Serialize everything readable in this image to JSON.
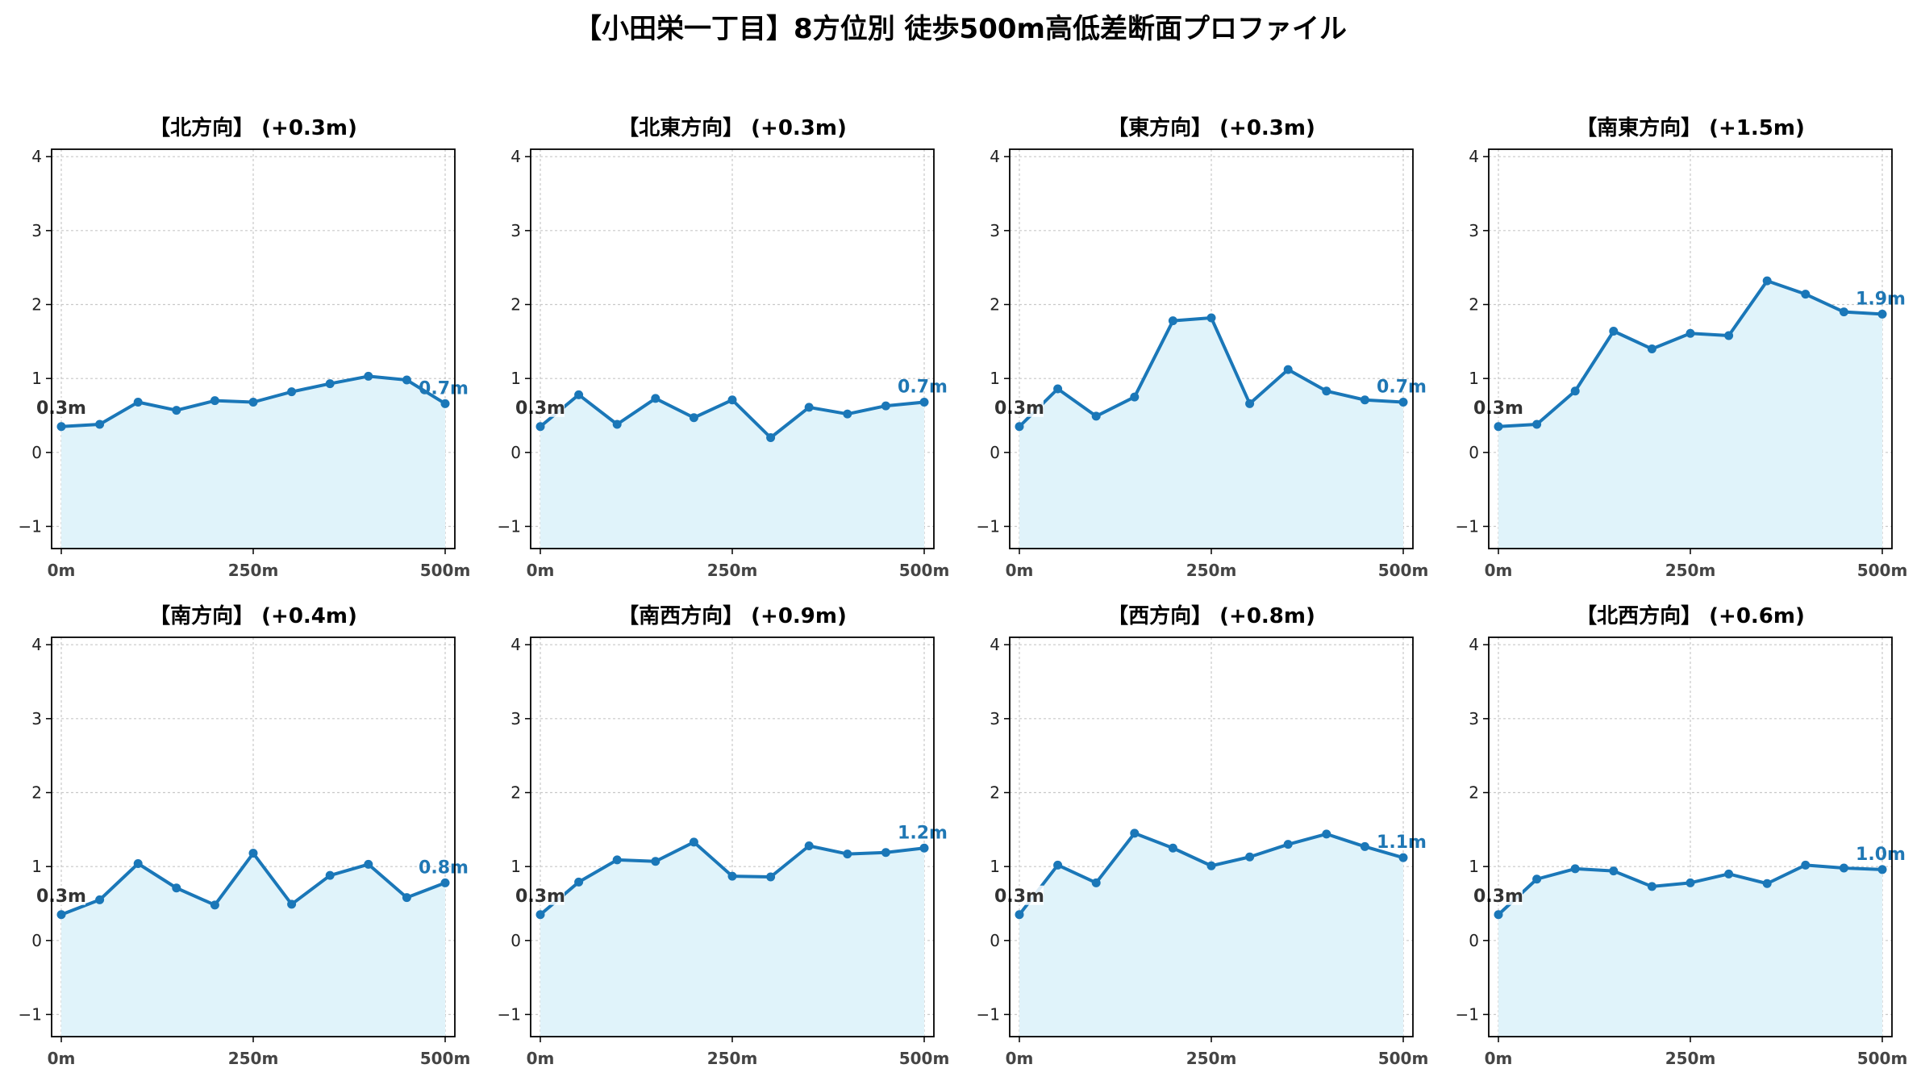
{
  "title": "【小田栄一丁目】8方位別 徒歩500m高低差断面プロファイル",
  "colors": {
    "line": "#1a77b8",
    "fill": "#e0f3fa",
    "grid": "#c8c8c8",
    "end_label": "#1f77b4",
    "start_label": "#333333"
  },
  "chart_data": [
    {
      "type": "area",
      "title": "【北方向】 (+0.3m)",
      "x": [
        0,
        50,
        100,
        150,
        200,
        250,
        300,
        350,
        400,
        450,
        500
      ],
      "values": [
        0.35,
        0.38,
        0.68,
        0.57,
        0.7,
        0.68,
        0.82,
        0.93,
        1.03,
        0.98,
        0.66
      ],
      "xticks": [
        "0m",
        "250m",
        "500m"
      ],
      "yticks": [
        "−1",
        "0",
        "1",
        "2",
        "3",
        "4"
      ],
      "ylim": [
        -1.3,
        4.1
      ],
      "start_label": "0.3m",
      "end_label": "0.7m",
      "grid": true
    },
    {
      "type": "area",
      "title": "【北東方向】 (+0.3m)",
      "x": [
        0,
        50,
        100,
        150,
        200,
        250,
        300,
        350,
        400,
        450,
        500
      ],
      "values": [
        0.35,
        0.78,
        0.38,
        0.73,
        0.47,
        0.71,
        0.2,
        0.61,
        0.52,
        0.63,
        0.68
      ],
      "xticks": [
        "0m",
        "250m",
        "500m"
      ],
      "yticks": [
        "−1",
        "0",
        "1",
        "2",
        "3",
        "4"
      ],
      "ylim": [
        -1.3,
        4.1
      ],
      "start_label": "0.3m",
      "end_label": "0.7m",
      "grid": true
    },
    {
      "type": "area",
      "title": "【東方向】 (+0.3m)",
      "x": [
        0,
        50,
        100,
        150,
        200,
        250,
        300,
        350,
        400,
        450,
        500
      ],
      "values": [
        0.35,
        0.86,
        0.49,
        0.75,
        1.78,
        1.82,
        0.66,
        1.12,
        0.83,
        0.71,
        0.68
      ],
      "xticks": [
        "0m",
        "250m",
        "500m"
      ],
      "yticks": [
        "−1",
        "0",
        "1",
        "2",
        "3",
        "4"
      ],
      "ylim": [
        -1.3,
        4.1
      ],
      "start_label": "0.3m",
      "end_label": "0.7m",
      "grid": true
    },
    {
      "type": "area",
      "title": "【南東方向】 (+1.5m)",
      "x": [
        0,
        50,
        100,
        150,
        200,
        250,
        300,
        350,
        400,
        450,
        500
      ],
      "values": [
        0.35,
        0.38,
        0.83,
        1.64,
        1.4,
        1.61,
        1.58,
        2.32,
        2.14,
        1.9,
        1.87
      ],
      "xticks": [
        "0m",
        "250m",
        "500m"
      ],
      "yticks": [
        "−1",
        "0",
        "1",
        "2",
        "3",
        "4"
      ],
      "ylim": [
        -1.3,
        4.1
      ],
      "start_label": "0.3m",
      "end_label": "1.9m",
      "grid": true
    },
    {
      "type": "area",
      "title": "【南方向】 (+0.4m)",
      "x": [
        0,
        50,
        100,
        150,
        200,
        250,
        300,
        350,
        400,
        450,
        500
      ],
      "values": [
        0.35,
        0.55,
        1.04,
        0.71,
        0.48,
        1.18,
        0.49,
        0.88,
        1.03,
        0.58,
        0.78
      ],
      "xticks": [
        "0m",
        "250m",
        "500m"
      ],
      "yticks": [
        "−1",
        "0",
        "1",
        "2",
        "3",
        "4"
      ],
      "ylim": [
        -1.3,
        4.1
      ],
      "start_label": "0.3m",
      "end_label": "0.8m",
      "grid": true
    },
    {
      "type": "area",
      "title": "【南西方向】 (+0.9m)",
      "x": [
        0,
        50,
        100,
        150,
        200,
        250,
        300,
        350,
        400,
        450,
        500
      ],
      "values": [
        0.35,
        0.79,
        1.09,
        1.07,
        1.33,
        0.87,
        0.86,
        1.28,
        1.17,
        1.19,
        1.25
      ],
      "xticks": [
        "0m",
        "250m",
        "500m"
      ],
      "yticks": [
        "−1",
        "0",
        "1",
        "2",
        "3",
        "4"
      ],
      "ylim": [
        -1.3,
        4.1
      ],
      "start_label": "0.3m",
      "end_label": "1.2m",
      "grid": true
    },
    {
      "type": "area",
      "title": "【西方向】 (+0.8m)",
      "x": [
        0,
        50,
        100,
        150,
        200,
        250,
        300,
        350,
        400,
        450,
        500
      ],
      "values": [
        0.35,
        1.02,
        0.78,
        1.45,
        1.25,
        1.01,
        1.13,
        1.3,
        1.44,
        1.27,
        1.12
      ],
      "xticks": [
        "0m",
        "250m",
        "500m"
      ],
      "yticks": [
        "−1",
        "0",
        "1",
        "2",
        "3",
        "4"
      ],
      "ylim": [
        -1.3,
        4.1
      ],
      "start_label": "0.3m",
      "end_label": "1.1m",
      "grid": true
    },
    {
      "type": "area",
      "title": "【北西方向】 (+0.6m)",
      "x": [
        0,
        50,
        100,
        150,
        200,
        250,
        300,
        350,
        400,
        450,
        500
      ],
      "values": [
        0.35,
        0.83,
        0.97,
        0.94,
        0.73,
        0.78,
        0.9,
        0.77,
        1.02,
        0.98,
        0.96
      ],
      "xticks": [
        "0m",
        "250m",
        "500m"
      ],
      "yticks": [
        "−1",
        "0",
        "1",
        "2",
        "3",
        "4"
      ],
      "ylim": [
        -1.3,
        4.1
      ],
      "start_label": "0.3m",
      "end_label": "1.0m",
      "grid": true
    }
  ]
}
